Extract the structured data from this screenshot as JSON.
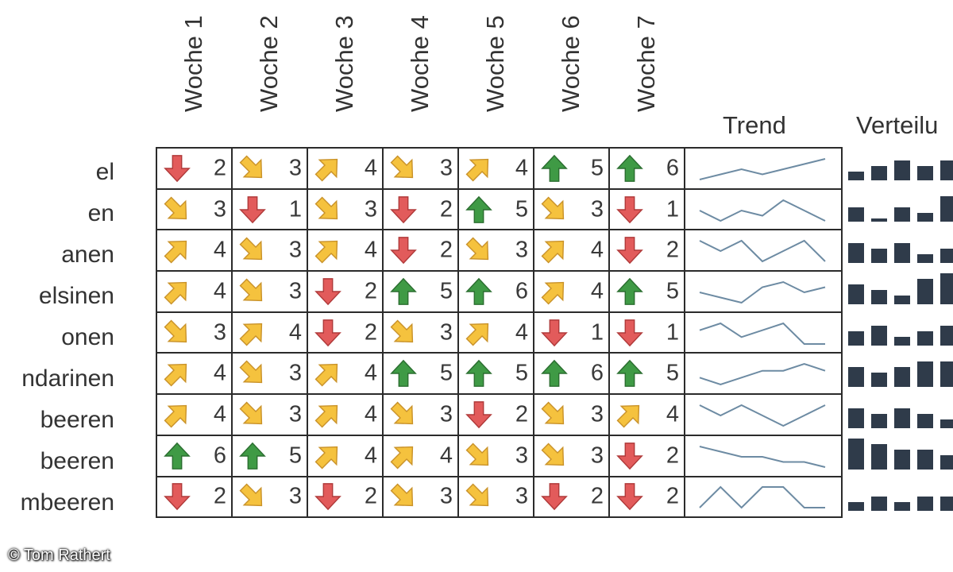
{
  "weeks": [
    "Woche 1",
    "Woche 2",
    "Woche 3",
    "Woche 4",
    "Woche 5",
    "Woche 6",
    "Woche 7"
  ],
  "trend_label": "Trend",
  "distribution_label": "Verteilu",
  "rows": [
    {
      "label": "el",
      "values": [
        2,
        3,
        4,
        3,
        4,
        5,
        6
      ]
    },
    {
      "label": "en",
      "values": [
        3,
        1,
        3,
        2,
        5,
        3,
        1
      ]
    },
    {
      "label": "anen",
      "values": [
        4,
        3,
        4,
        2,
        3,
        4,
        2
      ]
    },
    {
      "label": "elsinen",
      "values": [
        4,
        3,
        2,
        5,
        6,
        4,
        5
      ]
    },
    {
      "label": "onen",
      "values": [
        3,
        4,
        2,
        3,
        4,
        1,
        1
      ]
    },
    {
      "label": "ndarinen",
      "values": [
        4,
        3,
        4,
        5,
        5,
        6,
        5
      ]
    },
    {
      "label": "beeren",
      "values": [
        4,
        3,
        4,
        3,
        2,
        3,
        4
      ]
    },
    {
      "label": "beeren",
      "values": [
        6,
        5,
        4,
        4,
        3,
        3,
        2
      ]
    },
    {
      "label": "mbeeren",
      "values": [
        2,
        3,
        2,
        3,
        3,
        2,
        2
      ]
    }
  ],
  "icon_set": {
    "1": "arrow-down-icon",
    "2": "arrow-down-icon",
    "3": "arrow-down-right-icon",
    "4": "arrow-up-right-icon",
    "5": "arrow-up-icon",
    "6": "arrow-up-icon"
  },
  "colors": {
    "red": "#e25b5b",
    "amber": "#f5c23e",
    "green": "#3f9a45",
    "sparkline": "#6d8ba3",
    "bar": "#2f3b4a"
  },
  "credit": "© Tom Rathert"
}
